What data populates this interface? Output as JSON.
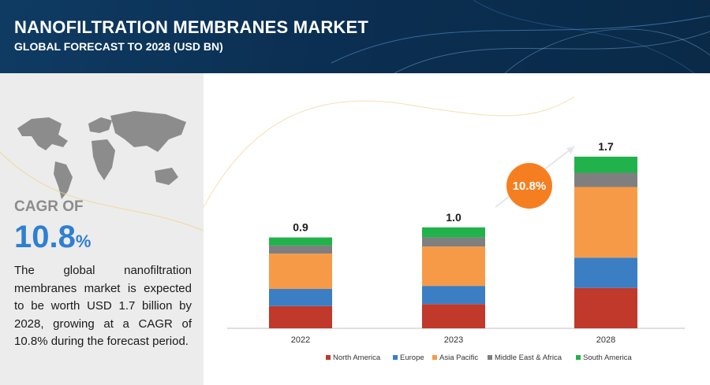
{
  "header": {
    "title": "NANOFILTRATION MEMBRANES MARKET",
    "subtitle": "GLOBAL FORECAST TO 2028 (USD BN)"
  },
  "sidebar": {
    "cagr_label": "CAGR OF",
    "cagr_value": "10.8",
    "cagr_unit": "%",
    "description": "The global nanofiltration membranes market is expected to be worth USD 1.7 billion by 2028, growing at a CAGR of 10.8% during the forecast period."
  },
  "colors": {
    "banner": "#0b2f52",
    "cagr_blue": "#2f7fd0",
    "bubble": "#f57f20",
    "north_america": "#c0392b",
    "europe": "#3b7ec4",
    "asia_pacific": "#f79a47",
    "middle_east_africa": "#7f7f7f",
    "south_america": "#22b24c"
  },
  "chart_data": {
    "type": "bar",
    "stacked": true,
    "categories": [
      "2022",
      "2023",
      "2028"
    ],
    "totals": [
      "0.9",
      "1.0",
      "1.7"
    ],
    "series": [
      {
        "name": "North America",
        "color": "#c0392b",
        "values": [
          0.22,
          0.24,
          0.4
        ]
      },
      {
        "name": "Europe",
        "color": "#3b7ec4",
        "values": [
          0.17,
          0.18,
          0.3
        ]
      },
      {
        "name": "Asia Pacific",
        "color": "#f79a47",
        "values": [
          0.35,
          0.39,
          0.7
        ]
      },
      {
        "name": "Middle East & Africa",
        "color": "#7f7f7f",
        "values": [
          0.08,
          0.09,
          0.14
        ]
      },
      {
        "name": "South America",
        "color": "#22b24c",
        "values": [
          0.08,
          0.1,
          0.16
        ]
      }
    ],
    "ylim": [
      0,
      1.7
    ],
    "annotation": {
      "text": "10.8%"
    },
    "grid": false,
    "legend_position": "bottom"
  }
}
